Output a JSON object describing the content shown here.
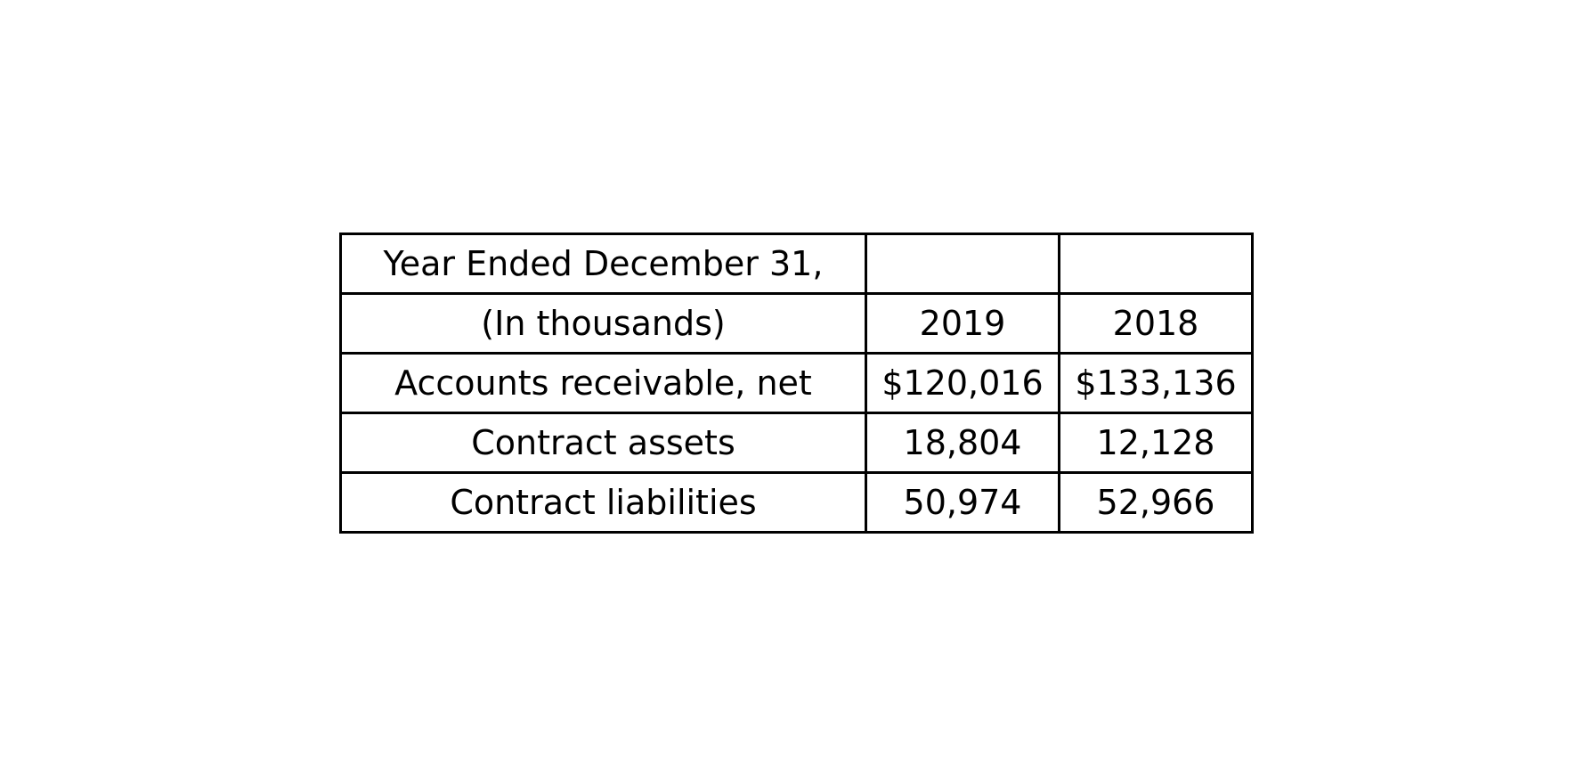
{
  "table": {
    "header_row_1": [
      "Year Ended December 31,",
      "",
      ""
    ],
    "header_row_2": [
      "(In thousands)",
      "2019",
      "2018"
    ],
    "rows": [
      [
        "Accounts receivable, net",
        "$120,016",
        "$133,136"
      ],
      [
        "Contract assets",
        "18,804",
        "12,128"
      ],
      [
        "Contract liabilities",
        "50,974",
        "52,966"
      ]
    ]
  }
}
